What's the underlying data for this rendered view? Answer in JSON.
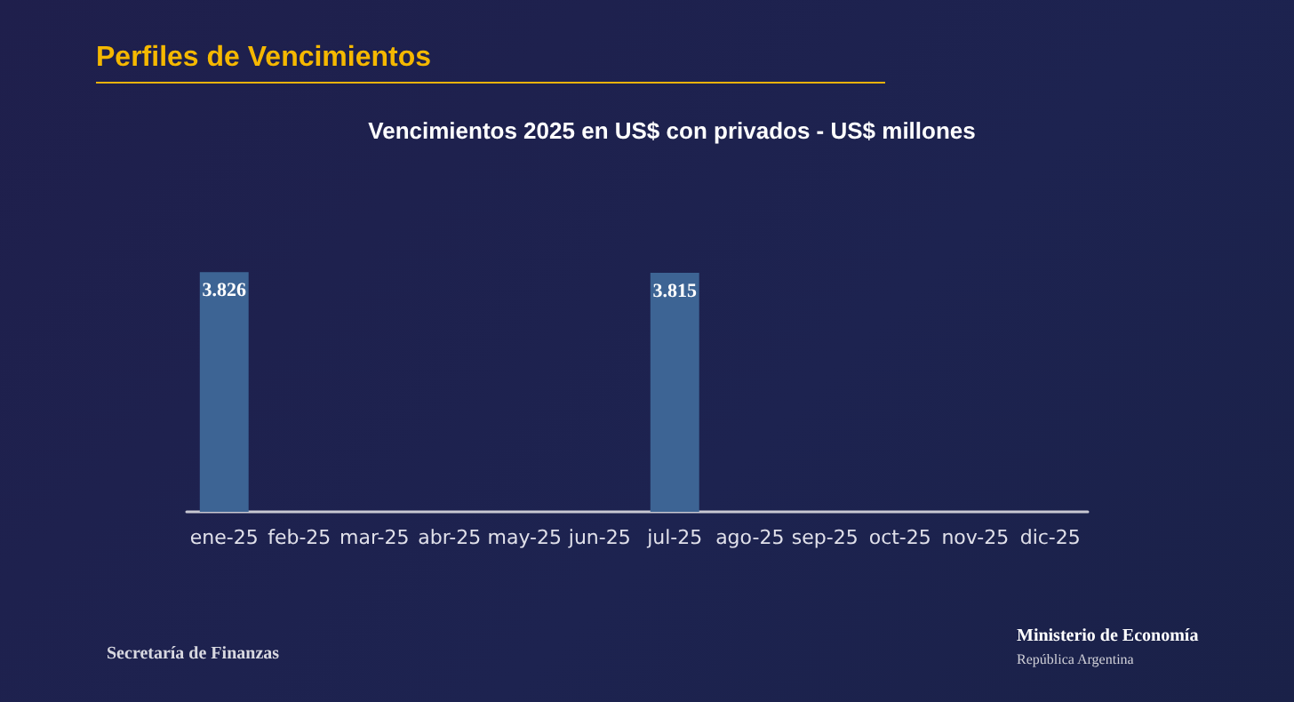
{
  "chart_data": {
    "type": "bar",
    "title": "Perfiles de Vencimientos",
    "subtitle": "Vencimientos 2025 en US$ con privados - US$ millones",
    "categories": [
      "ene-25",
      "feb-25",
      "mar-25",
      "abr-25",
      "may-25",
      "jun-25",
      "jul-25",
      "ago-25",
      "sep-25",
      "oct-25",
      "nov-25",
      "dic-25"
    ],
    "values": [
      3826,
      0,
      0,
      0,
      0,
      0,
      3815,
      0,
      0,
      0,
      0,
      0
    ],
    "value_labels": [
      "3.826",
      null,
      null,
      null,
      null,
      null,
      "3.815",
      null,
      null,
      null,
      null,
      null
    ],
    "color": "#3d6494",
    "grid": false,
    "tick_labels": "x",
    "annotations": [
      "Secretaría de Finanzas",
      "Ministerio de Economía",
      "República Argentina"
    ]
  }
}
